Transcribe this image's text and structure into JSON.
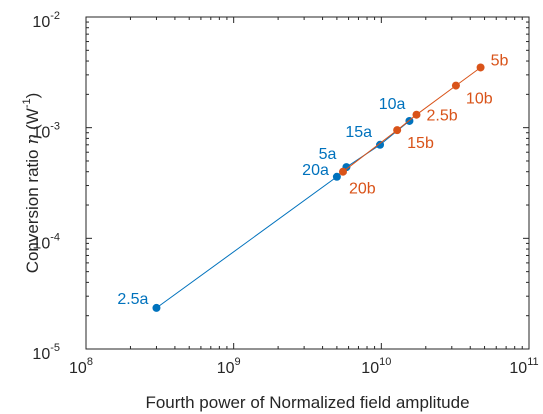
{
  "chart_data": {
    "type": "line",
    "xscale": "log",
    "yscale": "log",
    "xlim": [
      100000000,
      100000000000
    ],
    "ylim": [
      1e-05,
      0.01
    ],
    "xticks": [
      {
        "base": "10",
        "exp": "8",
        "value": 100000000
      },
      {
        "base": "10",
        "exp": "9",
        "value": 1000000000
      },
      {
        "base": "10",
        "exp": "10",
        "value": 10000000000
      },
      {
        "base": "10",
        "exp": "11",
        "value": 100000000000
      }
    ],
    "yticks": [
      {
        "base": "10",
        "exp": "-5",
        "value": 1e-05
      },
      {
        "base": "10",
        "exp": "-4",
        "value": 0.0001
      },
      {
        "base": "10",
        "exp": "-3",
        "value": 0.001
      },
      {
        "base": "10",
        "exp": "-2",
        "value": 0.01
      }
    ],
    "xlabel": "Fourth power of Normalized field amplitude",
    "ylabel": {
      "prefix": "Conversion ratio ",
      "symbol": "η",
      "unit_open": " (W",
      "unit_exp": "-1",
      "unit_close": ")"
    },
    "grid": false,
    "series": [
      {
        "color": "#0072BD",
        "points": [
          {
            "label": "2.5a",
            "x": 300000000,
            "y": 2.35e-05
          },
          {
            "label": "20a",
            "x": 5000000000,
            "y": 0.00036
          },
          {
            "label": "5a",
            "x": 5800000000,
            "y": 0.00044
          },
          {
            "label": "15a",
            "x": 9800000000,
            "y": 0.0007
          },
          {
            "label": "10a",
            "x": 15500000000,
            "y": 0.00115
          }
        ]
      },
      {
        "color": "#D95319",
        "points": [
          {
            "label": "20b",
            "x": 5500000000,
            "y": 0.0004
          },
          {
            "label": "15b",
            "x": 12800000000,
            "y": 0.00095
          },
          {
            "label": "2.5b",
            "x": 17300000000,
            "y": 0.00131
          },
          {
            "label": "10b",
            "x": 32000000000,
            "y": 0.0024
          },
          {
            "label": "5b",
            "x": 47000000000,
            "y": 0.0035
          }
        ]
      }
    ]
  }
}
